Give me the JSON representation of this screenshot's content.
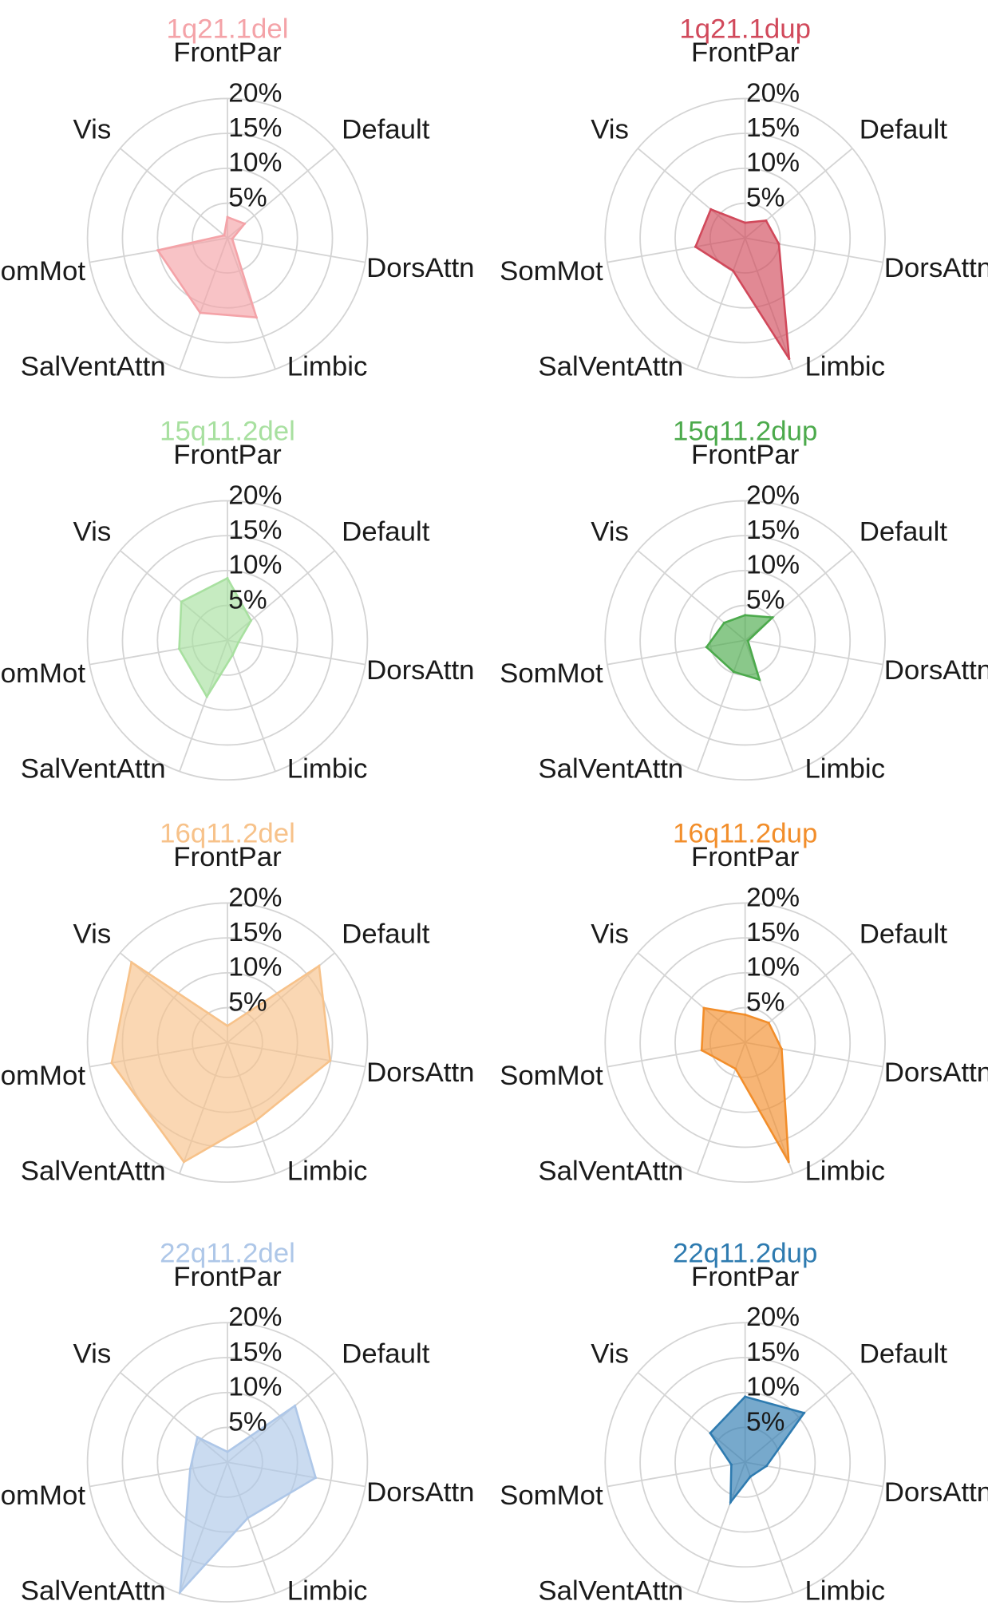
{
  "chart_data": [
    {
      "type": "radar",
      "title": "1q21.1del",
      "color": "#f4a3a8",
      "axes": [
        "FrontPar",
        "Default",
        "DorsAttn",
        "Limbic",
        "SalVentAttn",
        "SomMot",
        "Vis"
      ],
      "values": [
        3.0,
        3.2,
        0.7,
        12.1,
        11.4,
        10.1,
        0.6
      ],
      "rlim": [
        0,
        20
      ],
      "r_ticks": [
        "5%",
        "10%",
        "15%",
        "20%"
      ]
    },
    {
      "type": "radar",
      "title": "1q21.1dup",
      "color": "#d1495b",
      "axes": [
        "FrontPar",
        "Default",
        "DorsAttn",
        "Limbic",
        "SalVentAttn",
        "SomMot",
        "Vis"
      ],
      "values": [
        2.2,
        3.9,
        4.9,
        18.4,
        5.0,
        7.2,
        6.4
      ],
      "rlim": [
        0,
        20
      ],
      "r_ticks": [
        "5%",
        "10%",
        "15%",
        "20%"
      ]
    },
    {
      "type": "radar",
      "title": "15q11.2del",
      "color": "#a8e0a0",
      "axes": [
        "FrontPar",
        "Default",
        "DorsAttn",
        "Limbic",
        "SalVentAttn",
        "SomMot",
        "Vis"
      ],
      "values": [
        8.9,
        4.4,
        1.6,
        2.2,
        8.6,
        7.0,
        8.6
      ],
      "rlim": [
        0,
        20
      ],
      "r_ticks": [
        "5%",
        "10%",
        "15%",
        "20%"
      ]
    },
    {
      "type": "radar",
      "title": "15q11.2dup",
      "color": "#4caa4c",
      "axes": [
        "FrontPar",
        "Default",
        "DorsAttn",
        "Limbic",
        "SalVentAttn",
        "SomMot",
        "Vis"
      ],
      "values": [
        3.6,
        5.1,
        0.4,
        6.0,
        4.8,
        5.6,
        3.9
      ],
      "rlim": [
        0,
        20
      ],
      "r_ticks": [
        "5%",
        "10%",
        "15%",
        "20%"
      ]
    },
    {
      "type": "radar",
      "title": "16q11.2del",
      "color": "#f7c28a",
      "axes": [
        "FrontPar",
        "Default",
        "DorsAttn",
        "Limbic",
        "SalVentAttn",
        "SomMot",
        "Vis"
      ],
      "values": [
        2.4,
        17.1,
        14.9,
        11.9,
        18.2,
        16.8,
        17.9
      ],
      "rlim": [
        0,
        20
      ],
      "r_ticks": [
        "5%",
        "10%",
        "15%",
        "20%"
      ]
    },
    {
      "type": "radar",
      "title": "16q11.2dup",
      "color": "#f28e2b",
      "axes": [
        "FrontPar",
        "Default",
        "DorsAttn",
        "Limbic",
        "SalVentAttn",
        "SomMot",
        "Vis"
      ],
      "values": [
        4.0,
        4.4,
        5.3,
        18.2,
        4.0,
        6.3,
        7.7
      ],
      "rlim": [
        0,
        20
      ],
      "r_ticks": [
        "5%",
        "10%",
        "15%",
        "20%"
      ]
    },
    {
      "type": "radar",
      "title": "22q11.2del",
      "color": "#aec7e8",
      "axes": [
        "FrontPar",
        "Default",
        "DorsAttn",
        "Limbic",
        "SalVentAttn",
        "SomMot",
        "Vis"
      ],
      "values": [
        1.5,
        12.6,
        12.8,
        8.5,
        19.8,
        5.4,
        5.6
      ],
      "rlim": [
        0,
        20
      ],
      "r_ticks": [
        "5%",
        "10%",
        "15%",
        "20%"
      ]
    },
    {
      "type": "radar",
      "title": "22q11.2dup",
      "color": "#2e7bb0",
      "axes": [
        "FrontPar",
        "Default",
        "DorsAttn",
        "Limbic",
        "SalVentAttn",
        "SomMot",
        "Vis"
      ],
      "values": [
        9.4,
        11.0,
        3.1,
        2.2,
        6.1,
        2.0,
        6.5
      ],
      "rlim": [
        0,
        20
      ],
      "r_ticks": [
        "5%",
        "10%",
        "15%",
        "20%"
      ]
    }
  ]
}
